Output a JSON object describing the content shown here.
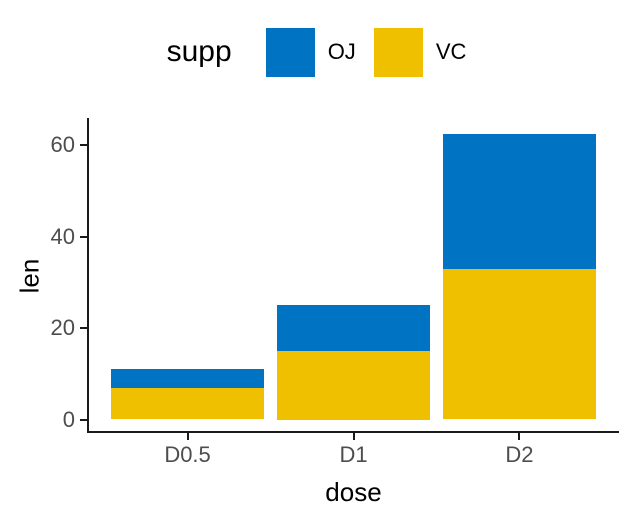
{
  "chart_data": {
    "type": "bar",
    "stacked": true,
    "title": "",
    "xlabel": "dose",
    "ylabel": "len",
    "legend_title": "supp",
    "legend_position": "top",
    "categories": [
      "D0.5",
      "D1",
      "D2"
    ],
    "series": [
      {
        "name": "OJ",
        "color": "#0073C2",
        "values": [
          4.2,
          10,
          29.5
        ]
      },
      {
        "name": "VC",
        "color": "#EFC000",
        "values": [
          6.8,
          15,
          33
        ]
      }
    ],
    "stack_bottom_to_top": [
      "VC",
      "OJ"
    ],
    "stack_totals": [
      11,
      25,
      62.5
    ],
    "y_ticks": [
      0,
      20,
      40,
      60
    ],
    "ylim": [
      0,
      65.6
    ],
    "grid": false,
    "colors": {
      "axis_line": "#1a1a1a",
      "tick_label": "#4d4d4d",
      "title_text": "#000000",
      "background": "#ffffff"
    }
  }
}
